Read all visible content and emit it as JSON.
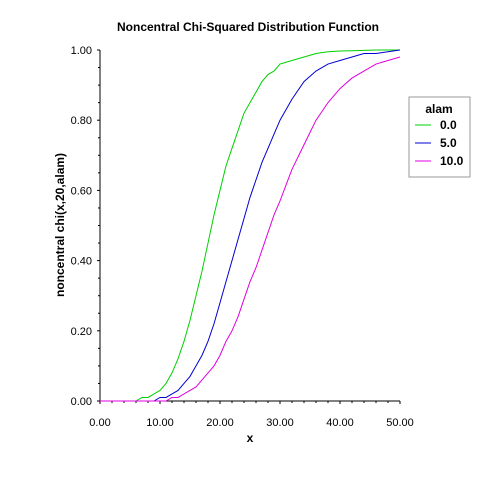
{
  "chart_data": {
    "type": "line",
    "title": "Noncentral Chi-Squared Distribution Function",
    "xlabel": "x",
    "ylabel": "noncentral chi(x,20,alam)",
    "xlim": [
      0,
      50
    ],
    "ylim": [
      0,
      1
    ],
    "x_ticks": [
      "0.00",
      "10.00",
      "20.00",
      "30.00",
      "40.00",
      "50.00"
    ],
    "y_ticks": [
      "0.00",
      "0.20",
      "0.40",
      "0.60",
      "0.80",
      "1.00"
    ],
    "grid": false,
    "legend": {
      "title": "alam",
      "position": "right",
      "entries": [
        "0.0",
        "5.0",
        "10.0"
      ]
    },
    "x": [
      0,
      5,
      6,
      7,
      8,
      9,
      10,
      11,
      12,
      13,
      14,
      15,
      16,
      17,
      18,
      19,
      20,
      21,
      22,
      23,
      24,
      25,
      26,
      27,
      28,
      29,
      30,
      32,
      34,
      36,
      38,
      40,
      42,
      44,
      46,
      48,
      50
    ],
    "series": [
      {
        "name": "0.0",
        "color": "#00d000",
        "values": [
          0,
          0.0,
          0.0,
          0.01,
          0.01,
          0.02,
          0.03,
          0.05,
          0.08,
          0.12,
          0.17,
          0.23,
          0.3,
          0.37,
          0.45,
          0.53,
          0.6,
          0.67,
          0.72,
          0.77,
          0.82,
          0.85,
          0.88,
          0.91,
          0.93,
          0.94,
          0.96,
          0.97,
          0.98,
          0.99,
          0.995,
          0.997,
          0.998,
          0.999,
          1.0,
          1.0,
          1.0
        ]
      },
      {
        "name": "5.0",
        "color": "#0000d0",
        "values": [
          0,
          0.0,
          0.0,
          0.0,
          0.0,
          0.0,
          0.01,
          0.01,
          0.02,
          0.03,
          0.05,
          0.07,
          0.1,
          0.13,
          0.17,
          0.22,
          0.28,
          0.34,
          0.4,
          0.46,
          0.52,
          0.58,
          0.63,
          0.68,
          0.72,
          0.76,
          0.8,
          0.86,
          0.91,
          0.94,
          0.96,
          0.97,
          0.98,
          0.99,
          0.99,
          0.995,
          1.0
        ]
      },
      {
        "name": "10.0",
        "color": "#e000e0",
        "values": [
          0,
          0.0,
          0.0,
          0.0,
          0.0,
          0.0,
          0.0,
          0.0,
          0.01,
          0.01,
          0.02,
          0.03,
          0.04,
          0.06,
          0.08,
          0.1,
          0.13,
          0.17,
          0.2,
          0.24,
          0.29,
          0.34,
          0.38,
          0.43,
          0.48,
          0.53,
          0.57,
          0.66,
          0.73,
          0.8,
          0.85,
          0.89,
          0.92,
          0.94,
          0.96,
          0.97,
          0.98
        ]
      }
    ]
  }
}
